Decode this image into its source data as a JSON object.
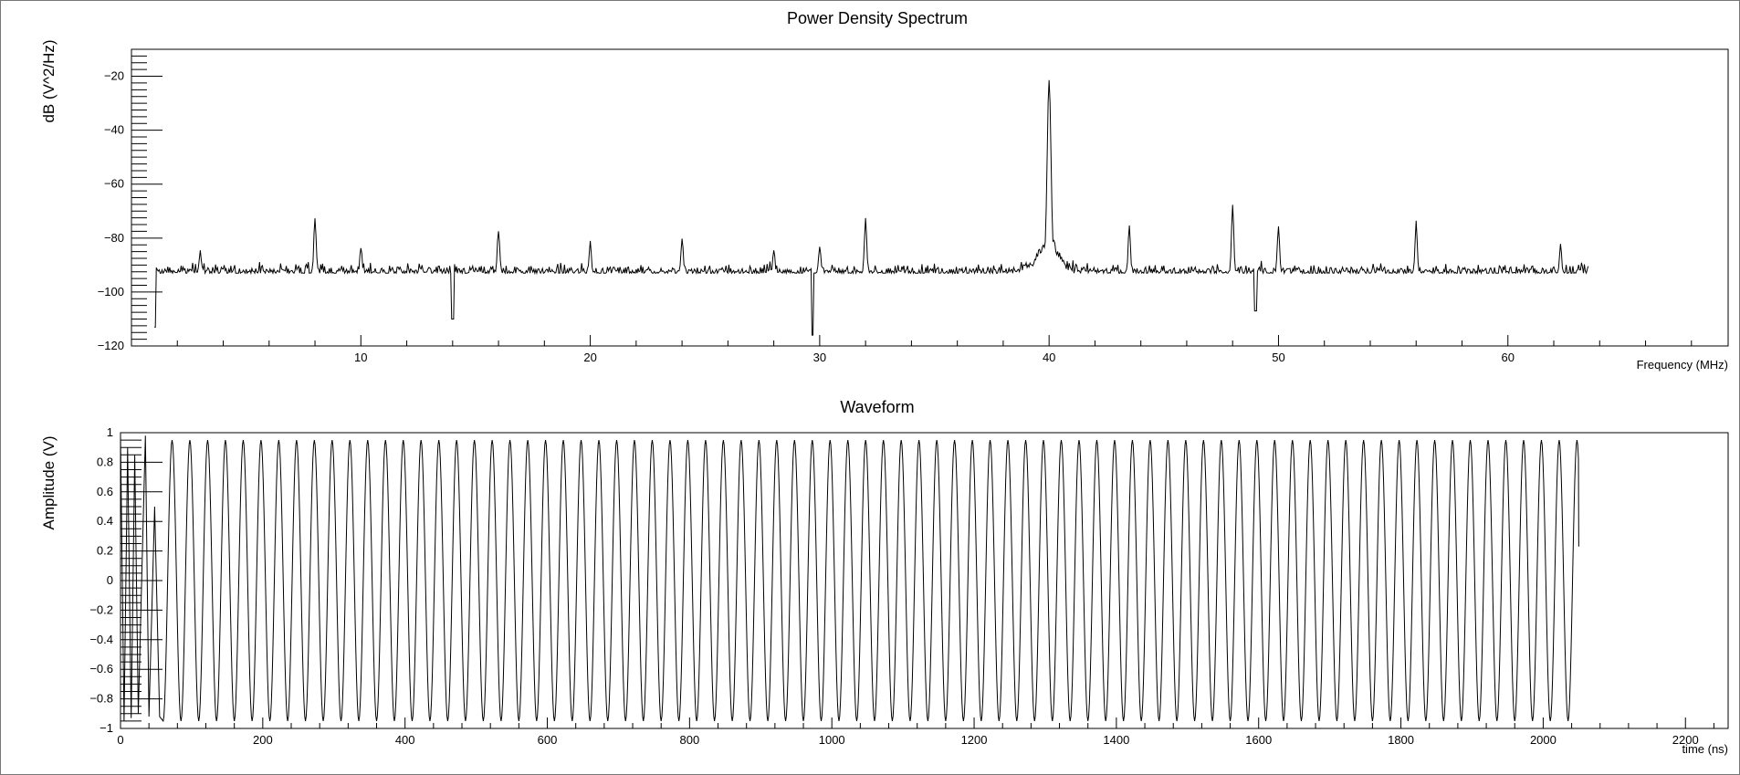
{
  "chart_data": [
    {
      "id": "spectrum",
      "type": "line",
      "title": "Power Density Spectrum",
      "xlabel": "Frequency (MHz)",
      "ylabel": "dB (V^2/Hz)",
      "xlim": [
        0,
        69.6
      ],
      "ylim": [
        -120,
        -10
      ],
      "xticks": [
        10,
        20,
        30,
        40,
        50,
        60
      ],
      "yticks": [
        -120,
        -100,
        -80,
        -60,
        -40,
        -20
      ],
      "grid": false,
      "series": [
        {
          "x_range": [
            1.0,
            63.5
          ],
          "noise_floor": -93,
          "peaks": [
            {
              "x": 3.0,
              "y": -85
            },
            {
              "x": 8.0,
              "y": -73
            },
            {
              "x": 10.0,
              "y": -83
            },
            {
              "x": 16.0,
              "y": -77
            },
            {
              "x": 20.0,
              "y": -82
            },
            {
              "x": 24.0,
              "y": -80
            },
            {
              "x": 28.0,
              "y": -85
            },
            {
              "x": 30.0,
              "y": -84
            },
            {
              "x": 32.0,
              "y": -73
            },
            {
              "x": 40.0,
              "y": -22
            },
            {
              "x": 43.5,
              "y": -76
            },
            {
              "x": 48.0,
              "y": -68
            },
            {
              "x": 50.0,
              "y": -76
            },
            {
              "x": 56.0,
              "y": -75
            },
            {
              "x": 62.3,
              "y": -83
            }
          ],
          "dips": [
            {
              "x": 1.0,
              "y": -113
            },
            {
              "x": 14.0,
              "y": -110
            },
            {
              "x": 29.7,
              "y": -116
            },
            {
              "x": 49.0,
              "y": -107
            }
          ]
        }
      ]
    },
    {
      "id": "waveform",
      "type": "line",
      "title": "Waveform",
      "xlabel": "time (ns)",
      "ylabel": "Amplitude (V)",
      "xlim": [
        0,
        2260
      ],
      "ylim": [
        -1,
        1
      ],
      "xticks": [
        0,
        200,
        400,
        600,
        800,
        1000,
        1200,
        1400,
        1600,
        1800,
        2000,
        2200
      ],
      "yticks": [
        -1,
        -0.8,
        -0.6,
        -0.4,
        -0.2,
        0,
        0.2,
        0.4,
        0.6,
        0.8,
        1
      ],
      "grid": false,
      "series": [
        {
          "signal": "sine",
          "frequency_mhz": 40,
          "amplitude": 0.95,
          "t_start": 60,
          "t_end": 2050,
          "end_value": 0.23,
          "start_transient": [
            {
              "x": 0,
              "y": 0.98
            },
            {
              "x": 5,
              "y": -0.95
            },
            {
              "x": 10,
              "y": 0.9
            },
            {
              "x": 15,
              "y": -0.93
            },
            {
              "x": 20,
              "y": 0.85
            },
            {
              "x": 25,
              "y": -0.9
            },
            {
              "x": 30,
              "y": 0.05
            },
            {
              "x": 35,
              "y": 0.98
            },
            {
              "x": 40,
              "y": -0.92
            },
            {
              "x": 48,
              "y": 0.5
            },
            {
              "x": 55,
              "y": -0.92
            }
          ]
        }
      ]
    }
  ]
}
